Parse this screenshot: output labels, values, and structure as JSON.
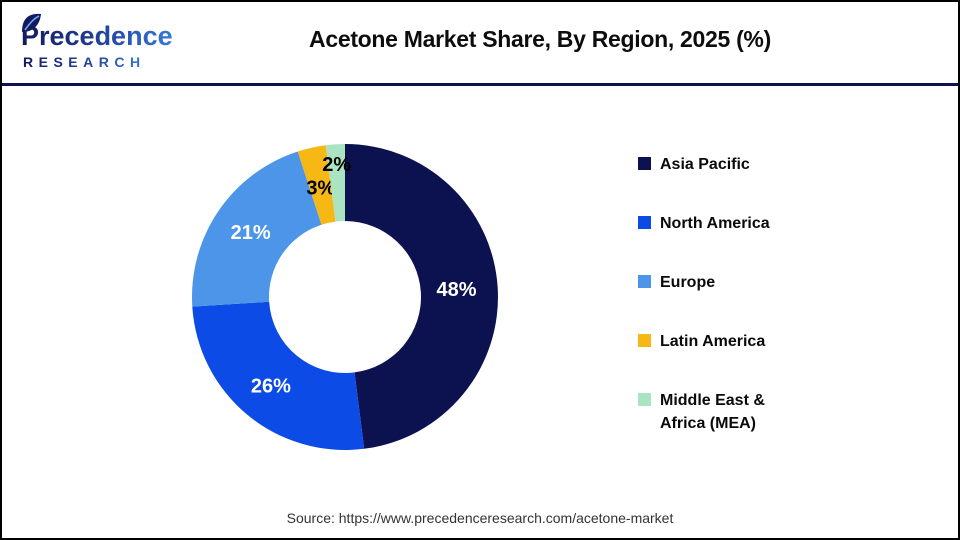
{
  "header": {
    "logo_line1": "Precedence",
    "logo_line2": "RESEARCH",
    "title": "Acetone Market Share, By Region, 2025 (%)"
  },
  "chart_data": {
    "type": "pie",
    "subtype": "donut",
    "title": "Acetone Market Share, By Region, 2025 (%)",
    "unit": "%",
    "start_angle_deg": 0,
    "direction": "clockwise",
    "legend_position": "right",
    "categories": [
      "Asia Pacific",
      "North America",
      "Europe",
      "Latin America",
      "Middle East & Africa (MEA)"
    ],
    "values": [
      48,
      26,
      21,
      3,
      2
    ],
    "labels": [
      "48%",
      "26%",
      "21%",
      "3%",
      "2%"
    ],
    "colors": [
      "#0c1150",
      "#0d4be6",
      "#4d95e8",
      "#f7b715",
      "#abe4c3"
    ],
    "label_colors": [
      "#ffffff",
      "#ffffff",
      "#ffffff",
      "#000000",
      "#000000"
    ]
  },
  "legend": {
    "items": [
      {
        "label": "Asia Pacific",
        "color": "#0c1150"
      },
      {
        "label": "North America",
        "color": "#0d4be6"
      },
      {
        "label": "Europe",
        "color": "#4d95e8"
      },
      {
        "label": "Latin America",
        "color": "#f7b715"
      },
      {
        "label": "Middle East & Africa (MEA)",
        "color": "#abe4c3"
      }
    ]
  },
  "footer": {
    "source": "Source: https://www.precedenceresearch.com/acetone-market"
  },
  "brand": {
    "navy": "#141a5f",
    "blue": "#3579d8",
    "divider": "#0e134e"
  }
}
